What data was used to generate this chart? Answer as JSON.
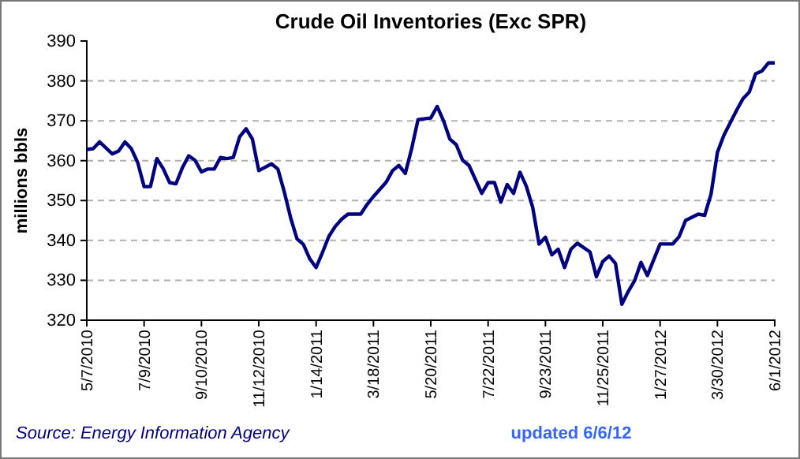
{
  "chart_data": {
    "type": "line",
    "title": "Crude Oil Inventories (Exc SPR)",
    "ylabel": "millions bbls",
    "annotations": [
      "Source: Energy Information Agency",
      "updated 6/6/12"
    ],
    "x": [
      "2010-05-07",
      "2010-05-14",
      "2010-05-21",
      "2010-06-04",
      "2010-06-11",
      "2010-06-18",
      "2010-06-25",
      "2010-07-02",
      "2010-07-09",
      "2010-07-16",
      "2010-07-23",
      "2010-07-30",
      "2010-08-06",
      "2010-08-13",
      "2010-08-20",
      "2010-08-27",
      "2010-09-03",
      "2010-09-10",
      "2010-09-17",
      "2010-09-24",
      "2010-10-01",
      "2010-10-08",
      "2010-10-15",
      "2010-10-22",
      "2010-10-29",
      "2010-11-05",
      "2010-11-12",
      "2010-11-26",
      "2010-12-03",
      "2010-12-10",
      "2010-12-17",
      "2010-12-24",
      "2010-12-31",
      "2011-01-07",
      "2011-01-14",
      "2011-01-21",
      "2011-01-28",
      "2011-02-04",
      "2011-02-11",
      "2011-02-18",
      "2011-03-04",
      "2011-03-11",
      "2011-03-18",
      "2011-04-01",
      "2011-04-08",
      "2011-04-15",
      "2011-04-22",
      "2011-04-29",
      "2011-05-06",
      "2011-05-20",
      "2011-05-27",
      "2011-06-03",
      "2011-06-10",
      "2011-06-17",
      "2011-06-24",
      "2011-07-01",
      "2011-07-15",
      "2011-07-22",
      "2011-07-29",
      "2011-08-05",
      "2011-08-12",
      "2011-08-19",
      "2011-08-26",
      "2011-09-02",
      "2011-09-09",
      "2011-09-16",
      "2011-09-23",
      "2011-09-30",
      "2011-10-07",
      "2011-10-14",
      "2011-10-21",
      "2011-10-28",
      "2011-11-11",
      "2011-11-18",
      "2011-11-25",
      "2011-12-02",
      "2011-12-09",
      "2011-12-16",
      "2011-12-23",
      "2011-12-30",
      "2012-01-06",
      "2012-01-13",
      "2012-01-27",
      "2012-02-10",
      "2012-02-17",
      "2012-02-24",
      "2012-03-09",
      "2012-03-16",
      "2012-03-23",
      "2012-03-30",
      "2012-04-06",
      "2012-04-20",
      "2012-04-27",
      "2012-05-04",
      "2012-05-11",
      "2012-05-18",
      "2012-05-25",
      "2012-06-01"
    ],
    "series": [
      {
        "color": "#000080",
        "values": [
          362.8,
          363,
          364.7,
          361.7,
          362.4,
          364.7,
          363,
          359.5,
          353.5,
          353.5,
          360.5,
          358,
          354.5,
          354.2,
          358.2,
          361.2,
          360.1,
          357.2,
          357.9,
          357.9,
          360.8,
          360.5,
          360.8,
          366,
          368,
          365.4,
          357.5,
          359.2,
          357.9,
          352.2,
          345.7,
          340.4,
          339,
          335.4,
          333.2,
          337,
          341,
          343.5,
          345.3,
          346.6,
          346.6,
          349,
          351,
          354.6,
          357.5,
          358.8,
          356.8,
          363,
          370.3,
          370.7,
          373.6,
          370,
          365.4,
          364,
          360.1,
          358.8,
          351.8,
          354.5,
          354.5,
          349.6,
          354,
          351.8,
          357.1,
          353.6,
          348.3,
          339.1,
          340.8,
          336.4,
          337.8,
          333.2,
          337.8,
          339.3,
          337.1,
          330.9,
          334.7,
          336.1,
          334.2,
          324,
          327.2,
          329.9,
          334.5,
          331.2,
          339.1,
          339.1,
          341,
          345,
          346.6,
          346.3,
          351.6,
          362.1,
          366.3,
          372.6,
          375.5,
          377.2,
          381.8,
          382.5,
          384.5,
          384.5
        ]
      }
    ],
    "xlim": [
      "2010-05-07",
      "2012-06-01"
    ],
    "xticks": [
      {
        "value": "2010-05-07",
        "label": "5/7/2010"
      },
      {
        "value": "2010-07-09",
        "label": "7/9/2010"
      },
      {
        "value": "2010-09-10",
        "label": "9/10/2010"
      },
      {
        "value": "2010-11-12",
        "label": "11/12/2010"
      },
      {
        "value": "2011-01-14",
        "label": "1/14/2011"
      },
      {
        "value": "2011-03-18",
        "label": "3/18/2011"
      },
      {
        "value": "2011-05-20",
        "label": "5/20/2011"
      },
      {
        "value": "2011-07-22",
        "label": "7/22/2011"
      },
      {
        "value": "2011-09-23",
        "label": "9/23/2011"
      },
      {
        "value": "2011-11-25",
        "label": "11/25/2011"
      },
      {
        "value": "2012-01-27",
        "label": "1/27/2012"
      },
      {
        "value": "2012-03-30",
        "label": "3/30/2012"
      },
      {
        "value": "2012-06-01",
        "label": "6/1/2012"
      }
    ],
    "ylim": [
      320,
      390
    ],
    "yticks": [
      320,
      330,
      340,
      350,
      360,
      370,
      380,
      390
    ],
    "grid": "y",
    "marker": "none",
    "line_style": "solid"
  }
}
